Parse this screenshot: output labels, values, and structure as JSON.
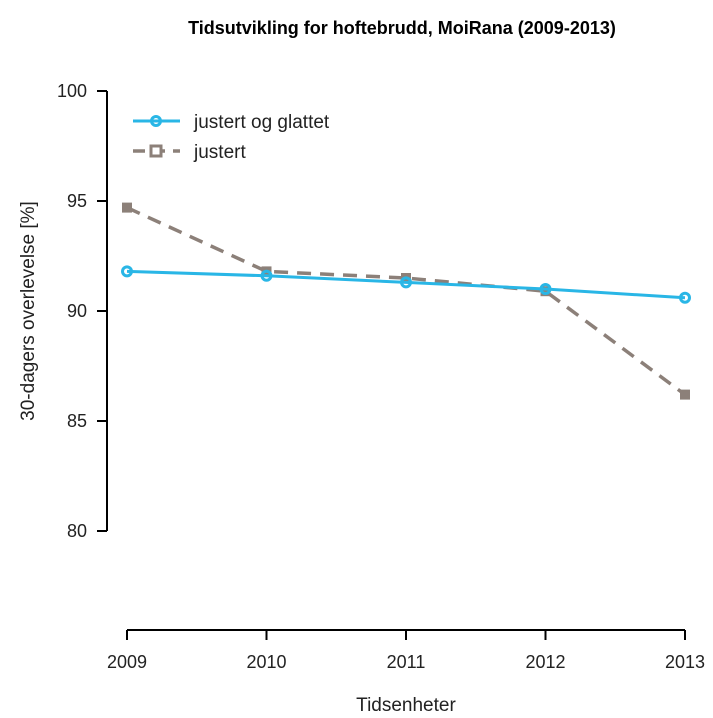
{
  "chart_data": {
    "type": "line",
    "title": "Tidsutvikling for hoftebrudd, MoiRana (2009-2013)",
    "xlabel": "Tidsenheter",
    "ylabel": "30-dagers overlevelse [%]",
    "categories": [
      "2009",
      "2010",
      "2011",
      "2012",
      "2013"
    ],
    "ylim": [
      80,
      100
    ],
    "yticks": [
      80,
      85,
      90,
      95,
      100
    ],
    "grid": false,
    "legend_position": "top-left",
    "series": [
      {
        "name": "justert og glattet",
        "values": [
          91.8,
          91.6,
          91.3,
          91.0,
          90.6
        ],
        "color": "#29b6e6",
        "style": "solid",
        "marker": "circle"
      },
      {
        "name": "justert",
        "values": [
          94.7,
          91.8,
          91.5,
          90.9,
          86.2
        ],
        "color": "#8c8079",
        "style": "dashed",
        "marker": "square"
      }
    ]
  }
}
